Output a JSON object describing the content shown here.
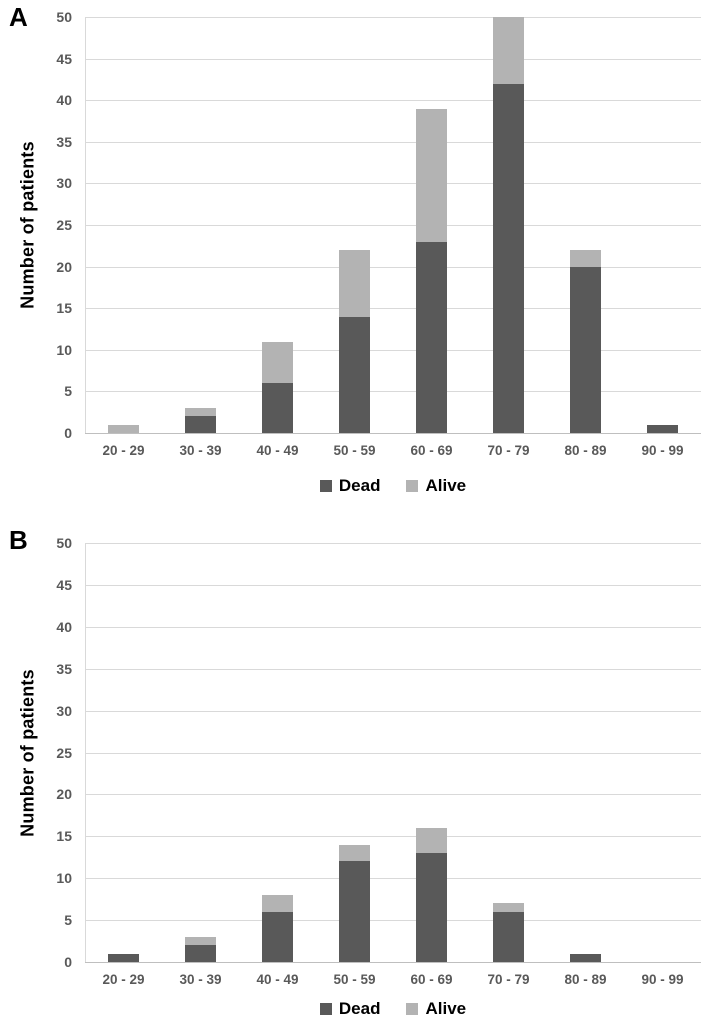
{
  "figure": {
    "background": "#ffffff"
  },
  "colors": {
    "dead": "#595959",
    "alive": "#b3b3b3",
    "gridline": "#d9d9d9",
    "axis_line": "#bfbfbf",
    "tick_text": "#595959",
    "label_text": "#000000"
  },
  "chart_data": [
    {
      "type": "bar",
      "stacked": true,
      "panel_label": "A",
      "title": "",
      "xlabel": "",
      "ylabel": "Number of patients",
      "categories": [
        "20 - 29",
        "30 - 39",
        "40 - 49",
        "50 - 59",
        "60 - 69",
        "70 - 79",
        "80 - 89",
        "90 - 99"
      ],
      "series": [
        {
          "name": "Dead",
          "color_key": "dead",
          "values": [
            0,
            2,
            6,
            14,
            23,
            42,
            20,
            1
          ]
        },
        {
          "name": "Alive",
          "color_key": "alive",
          "values": [
            1,
            1,
            5,
            8,
            16,
            8,
            2,
            0
          ]
        }
      ],
      "totals": [
        1,
        3,
        11,
        22,
        39,
        50,
        22,
        1
      ],
      "ylim": [
        0,
        50
      ],
      "ytick_step": 5,
      "grid": true,
      "legend_position": "bottom"
    },
    {
      "type": "bar",
      "stacked": true,
      "panel_label": "B",
      "title": "",
      "xlabel": "",
      "ylabel": "Number of patients",
      "categories": [
        "20 - 29",
        "30 - 39",
        "40 - 49",
        "50 - 59",
        "60 - 69",
        "70 - 79",
        "80 - 89",
        "90 - 99"
      ],
      "series": [
        {
          "name": "Dead",
          "color_key": "dead",
          "values": [
            1,
            2,
            6,
            12,
            13,
            6,
            1,
            0
          ]
        },
        {
          "name": "Alive",
          "color_key": "alive",
          "values": [
            0,
            1,
            2,
            2,
            3,
            1,
            0,
            0
          ]
        }
      ],
      "totals": [
        1,
        3,
        8,
        14,
        16,
        7,
        1,
        0
      ],
      "ylim": [
        0,
        50
      ],
      "ytick_step": 5,
      "grid": true,
      "legend_position": "bottom"
    }
  ]
}
